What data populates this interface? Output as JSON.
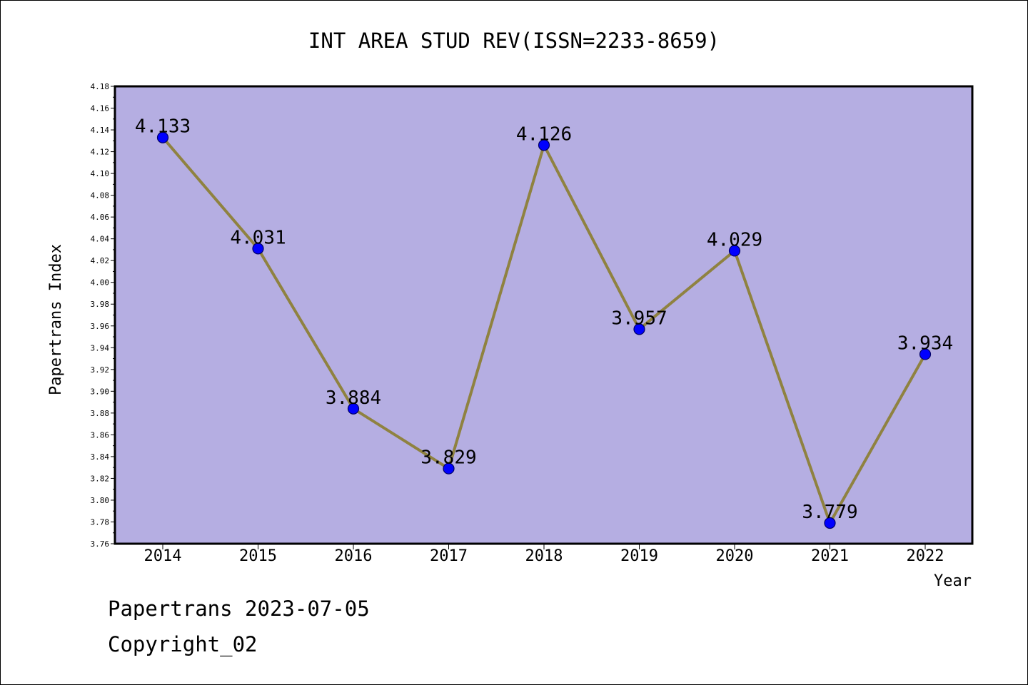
{
  "colors": {
    "plot_background": "#b5aee2",
    "line": "#8f8240",
    "marker": "#0000ff",
    "marker_edge": "#000066",
    "axis": "#000000"
  },
  "chart_data": {
    "type": "line",
    "title": "INT AREA STUD REV(ISSN=2233-8659)",
    "xlabel": "Year",
    "ylabel": "Papertrans Index",
    "categories": [
      "2014",
      "2015",
      "2016",
      "2017",
      "2018",
      "2019",
      "2020",
      "2021",
      "2022"
    ],
    "series": [
      {
        "values": [
          4.133,
          4.031,
          3.884,
          3.829,
          4.126,
          3.957,
          4.029,
          3.779,
          3.934
        ]
      }
    ],
    "data_labels": [
      "4.133",
      "4.031",
      "3.884",
      "3.829",
      "4.126",
      "3.957",
      "4.029",
      "3.779",
      "3.934"
    ],
    "ylim": [
      3.76,
      4.18
    ],
    "yticks": [
      "3.76",
      "3.78",
      "3.80",
      "3.82",
      "3.84",
      "3.86",
      "3.88",
      "3.90",
      "3.92",
      "3.94",
      "3.96",
      "3.98",
      "4.00",
      "4.02",
      "4.04",
      "4.06",
      "4.08",
      "4.10",
      "4.12",
      "4.14",
      "4.16",
      "4.18"
    ],
    "grid": false,
    "legend": "none"
  },
  "footer": {
    "line1": "Papertrans 2023-07-05",
    "line2": "Copyright_02"
  }
}
